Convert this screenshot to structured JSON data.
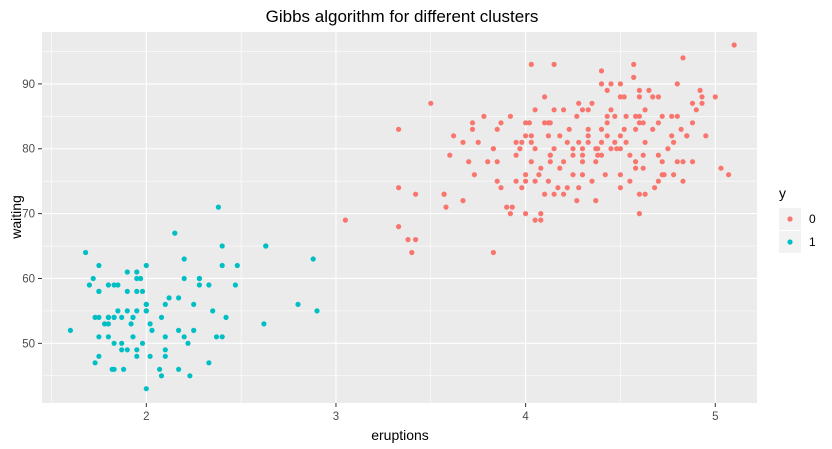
{
  "chart_data": {
    "type": "scatter",
    "title": "Gibbs algorithm for different clusters",
    "xlabel": "eruptions",
    "ylabel": "waiting",
    "xlim": [
      1.45,
      5.22
    ],
    "ylim": [
      40.8,
      98.0
    ],
    "x_ticks": [
      2,
      3,
      4,
      5
    ],
    "y_ticks": [
      50,
      60,
      70,
      80,
      90
    ],
    "x_tick_labels": [
      "2",
      "3",
      "4",
      "5"
    ],
    "y_tick_labels": [
      "50",
      "60",
      "70",
      "80",
      "90"
    ],
    "grid": true,
    "legend": {
      "title": "y",
      "position": "right"
    },
    "series": [
      {
        "name": "0",
        "color": "#F8766D",
        "points": [
          [
            3.6,
            79
          ],
          [
            3.33,
            74
          ],
          [
            4.53,
            85
          ],
          [
            4.7,
            88
          ],
          [
            3.92,
            70
          ],
          [
            4.43,
            85
          ],
          [
            4.58,
            77
          ],
          [
            4.5,
            82
          ],
          [
            4.37,
            80
          ],
          [
            4.8,
            85
          ],
          [
            3.05,
            69
          ],
          [
            4.0,
            75
          ],
          [
            4.4,
            90
          ],
          [
            4.1,
            73
          ],
          [
            4.48,
            80
          ],
          [
            4.33,
            82
          ],
          [
            3.83,
            64
          ],
          [
            4.67,
            88
          ],
          [
            3.33,
            68
          ],
          [
            4.25,
            76
          ],
          [
            3.5,
            87
          ],
          [
            4.7,
            84
          ],
          [
            4.22,
            74
          ],
          [
            4.53,
            81
          ],
          [
            4.13,
            84
          ],
          [
            4.62,
            84
          ],
          [
            4.07,
            76
          ],
          [
            3.9,
            71
          ],
          [
            4.88,
            84
          ],
          [
            4.6,
            88
          ],
          [
            4.52,
            88
          ],
          [
            3.75,
            81
          ],
          [
            4.95,
            82
          ],
          [
            4.37,
            78
          ],
          [
            4.13,
            79
          ],
          [
            4.78,
            81
          ],
          [
            4.05,
            80
          ],
          [
            4.83,
            75
          ],
          [
            4.25,
            80
          ],
          [
            4.93,
            88
          ],
          [
            4.45,
            86
          ],
          [
            5.1,
            96
          ],
          [
            4.33,
            83
          ],
          [
            4.85,
            82
          ],
          [
            4.72,
            76
          ],
          [
            4.13,
            78
          ],
          [
            4.52,
            83
          ],
          [
            4.7,
            75
          ],
          [
            3.57,
            73
          ],
          [
            4.18,
            82
          ],
          [
            3.87,
            74
          ],
          [
            4.63,
            86
          ],
          [
            3.8,
            78
          ],
          [
            4.03,
            81
          ],
          [
            4.58,
            83
          ],
          [
            3.95,
            79
          ],
          [
            3.67,
            81
          ],
          [
            3.83,
            80
          ],
          [
            4.58,
            85
          ],
          [
            4.03,
            93
          ],
          [
            4.45,
            80
          ],
          [
            5.07,
            76
          ],
          [
            4.28,
            74
          ],
          [
            4.77,
            82
          ],
          [
            4.0,
            82
          ],
          [
            4.12,
            75
          ],
          [
            4.35,
            87
          ],
          [
            3.58,
            71
          ],
          [
            4.6,
            73
          ],
          [
            4.63,
            73
          ],
          [
            3.7,
            78
          ],
          [
            4.08,
            70
          ],
          [
            4.8,
            90
          ],
          [
            4.67,
            83
          ],
          [
            4.28,
            87
          ],
          [
            4.2,
            78
          ],
          [
            4.77,
            85
          ],
          [
            3.92,
            85
          ],
          [
            4.47,
            85
          ],
          [
            4.03,
            78
          ],
          [
            4.12,
            84
          ],
          [
            3.78,
            85
          ],
          [
            4.2,
            73
          ],
          [
            4.42,
            76
          ],
          [
            3.33,
            83
          ],
          [
            4.5,
            76
          ],
          [
            3.57,
            73
          ],
          [
            4.1,
            84
          ],
          [
            4.3,
            76
          ],
          [
            4.8,
            78
          ],
          [
            4.65,
            89
          ],
          [
            4.83,
            94
          ],
          [
            4.4,
            83
          ],
          [
            4.5,
            90
          ],
          [
            4.08,
            77
          ],
          [
            4.57,
            93
          ],
          [
            4.0,
            76
          ],
          [
            3.42,
            66
          ],
          [
            4.28,
            81
          ],
          [
            3.38,
            66
          ],
          [
            4.6,
            85
          ],
          [
            3.72,
            84
          ],
          [
            4.15,
            86
          ],
          [
            4.37,
            72
          ],
          [
            4.3,
            79
          ],
          [
            4.62,
            77
          ],
          [
            4.27,
            72
          ],
          [
            3.87,
            84
          ],
          [
            4.23,
            83
          ],
          [
            4.18,
            77
          ],
          [
            4.05,
            69
          ],
          [
            4.92,
            89
          ],
          [
            4.57,
            91
          ],
          [
            3.83,
            80
          ],
          [
            4.78,
            76
          ],
          [
            3.93,
            71
          ],
          [
            5.0,
            88
          ],
          [
            3.85,
            83
          ],
          [
            4.88,
            78
          ],
          [
            4.15,
            93
          ],
          [
            4.25,
            79
          ],
          [
            4.2,
            86
          ],
          [
            4.4,
            92
          ],
          [
            3.72,
            83
          ],
          [
            4.62,
            79
          ],
          [
            4.0,
            70
          ],
          [
            4.72,
            85
          ],
          [
            4.88,
            87
          ],
          [
            4.33,
            81
          ],
          [
            4.5,
            80
          ],
          [
            3.73,
            76
          ],
          [
            4.4,
            81
          ],
          [
            4.7,
            79
          ],
          [
            3.98,
            81
          ],
          [
            4.3,
            80
          ],
          [
            4.43,
            84
          ],
          [
            4.08,
            69
          ],
          [
            4.0,
            84
          ],
          [
            4.43,
            82
          ],
          [
            4.75,
            80
          ],
          [
            4.55,
            79
          ],
          [
            3.95,
            75
          ],
          [
            4.15,
            80
          ],
          [
            4.82,
            83
          ],
          [
            4.47,
            81
          ],
          [
            4.02,
            84
          ],
          [
            4.27,
            85
          ],
          [
            4.63,
            81
          ],
          [
            4.83,
            78
          ],
          [
            4.1,
            88
          ],
          [
            4.58,
            78
          ],
          [
            4.5,
            88
          ],
          [
            4.33,
            86
          ],
          [
            3.98,
            74
          ],
          [
            4.68,
            74
          ],
          [
            3.67,
            72
          ],
          [
            4.22,
            81
          ],
          [
            4.38,
            79
          ],
          [
            4.45,
            90
          ],
          [
            4.05,
            86
          ],
          [
            3.85,
            75
          ],
          [
            4.72,
            78
          ],
          [
            4.85,
            82
          ],
          [
            4.17,
            74
          ],
          [
            4.13,
            79
          ],
          [
            4.6,
            89
          ],
          [
            4.3,
            86
          ],
          [
            3.97,
            80
          ],
          [
            4.73,
            76
          ],
          [
            4.3,
            78
          ],
          [
            4.05,
            75
          ],
          [
            3.95,
            81
          ],
          [
            4.9,
            86
          ],
          [
            4.43,
            89
          ],
          [
            4.93,
            87
          ],
          [
            3.4,
            64
          ],
          [
            4.5,
            74
          ],
          [
            4.4,
            79
          ],
          [
            5.03,
            77
          ],
          [
            4.55,
            75
          ],
          [
            4.35,
            75
          ],
          [
            4.6,
            70
          ],
          [
            4.12,
            82
          ],
          [
            3.62,
            82
          ],
          [
            4.38,
            80
          ],
          [
            4.6,
            84
          ],
          [
            4.15,
            73
          ],
          [
            3.85,
            78
          ],
          [
            3.42,
            73
          ],
          [
            4.03,
            82
          ]
        ]
      },
      {
        "name": "1",
        "color": "#00BFC4",
        "points": [
          [
            1.8,
            54
          ],
          [
            1.8,
            54
          ],
          [
            2.28,
            60
          ],
          [
            1.9,
            49
          ],
          [
            2.02,
            48
          ],
          [
            1.75,
            51
          ],
          [
            2.28,
            60
          ],
          [
            1.87,
            49
          ],
          [
            1.75,
            58
          ],
          [
            2.37,
            51
          ],
          [
            2.22,
            50
          ],
          [
            1.95,
            58
          ],
          [
            1.8,
            59
          ],
          [
            2.48,
            62
          ],
          [
            2.1,
            51
          ],
          [
            1.98,
            50
          ],
          [
            2.33,
            59
          ],
          [
            1.92,
            53
          ],
          [
            2.63,
            65
          ],
          [
            1.73,
            54
          ],
          [
            2.47,
            59
          ],
          [
            2.08,
            54
          ],
          [
            2.62,
            53
          ],
          [
            1.6,
            52
          ],
          [
            1.87,
            54
          ],
          [
            2.4,
            62
          ],
          [
            1.73,
            47
          ],
          [
            2.0,
            43
          ],
          [
            2.35,
            55
          ],
          [
            1.68,
            64
          ],
          [
            1.83,
            46
          ],
          [
            2.2,
            51
          ],
          [
            2.1,
            48
          ],
          [
            1.93,
            54
          ],
          [
            1.7,
            59
          ],
          [
            1.8,
            54
          ],
          [
            2.4,
            51
          ],
          [
            1.9,
            58
          ],
          [
            1.83,
            50
          ],
          [
            2.17,
            46
          ],
          [
            1.9,
            55
          ],
          [
            1.83,
            54
          ],
          [
            2.07,
            46
          ],
          [
            2.0,
            56
          ],
          [
            2.28,
            59
          ],
          [
            2.9,
            55
          ],
          [
            1.98,
            58
          ],
          [
            2.08,
            45
          ],
          [
            1.83,
            59
          ],
          [
            2.33,
            47
          ],
          [
            2.2,
            63
          ],
          [
            2.0,
            56
          ],
          [
            1.75,
            62
          ],
          [
            2.25,
            52
          ],
          [
            1.95,
            55
          ],
          [
            2.88,
            63
          ],
          [
            1.85,
            59
          ],
          [
            1.75,
            58
          ],
          [
            2.15,
            67
          ],
          [
            2.4,
            65
          ],
          [
            1.95,
            48
          ],
          [
            2.2,
            60
          ],
          [
            2.02,
            53
          ],
          [
            1.83,
            54
          ],
          [
            2.23,
            45
          ],
          [
            1.95,
            60
          ],
          [
            1.78,
            53
          ],
          [
            1.85,
            55
          ],
          [
            2.17,
            57
          ],
          [
            2.0,
            55
          ],
          [
            2.63,
            65
          ],
          [
            2.8,
            56
          ],
          [
            1.93,
            54
          ],
          [
            2.42,
            54
          ],
          [
            1.75,
            48
          ],
          [
            2.03,
            52
          ],
          [
            2.25,
            56
          ],
          [
            2.12,
            57
          ],
          [
            2.1,
            49
          ],
          [
            1.97,
            60
          ],
          [
            1.93,
            51
          ],
          [
            1.8,
            53
          ],
          [
            2.0,
            55
          ],
          [
            1.82,
            46
          ],
          [
            1.95,
            61
          ],
          [
            1.87,
            50
          ],
          [
            2.38,
            71
          ],
          [
            1.75,
            54
          ],
          [
            2.0,
            62
          ],
          [
            1.95,
            49
          ],
          [
            1.88,
            46
          ],
          [
            1.9,
            61
          ],
          [
            2.17,
            52
          ],
          [
            1.8,
            51
          ],
          [
            2.1,
            56
          ],
          [
            1.72,
            60
          ]
        ]
      }
    ]
  }
}
